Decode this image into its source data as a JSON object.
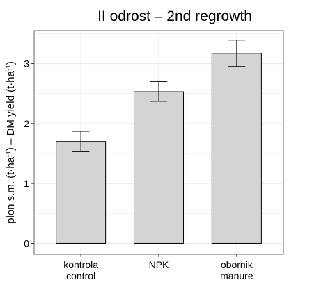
{
  "chart_data": {
    "type": "bar",
    "title": "II odrost – 2nd regrowth",
    "ylabel": {
      "parts": [
        {
          "text": "plon s.m. (t·ha"
        },
        {
          "text": "-1",
          "sup": true
        },
        {
          "text": ") – DM yield (t·ha"
        },
        {
          "text": "-1",
          "sup": true
        },
        {
          "text": ")"
        }
      ]
    },
    "xlabel": "",
    "categories": [
      {
        "lines": [
          "kontrola",
          "control"
        ]
      },
      {
        "lines": [
          "NPK"
        ]
      },
      {
        "lines": [
          "obornik",
          "manure"
        ]
      }
    ],
    "values": [
      1.7,
      2.53,
      3.17
    ],
    "error_low": [
      1.53,
      2.37,
      2.95
    ],
    "error_high": [
      1.87,
      2.7,
      3.39
    ],
    "ylim": [
      -0.18,
      3.55
    ],
    "yticks": [
      0,
      1,
      2,
      3
    ],
    "grid": true,
    "colors": {
      "bar_fill": "#d4d4d4",
      "bar_stroke": "#000000",
      "grid": "#ebebeb",
      "panel_border": "#7f7f7f"
    }
  }
}
